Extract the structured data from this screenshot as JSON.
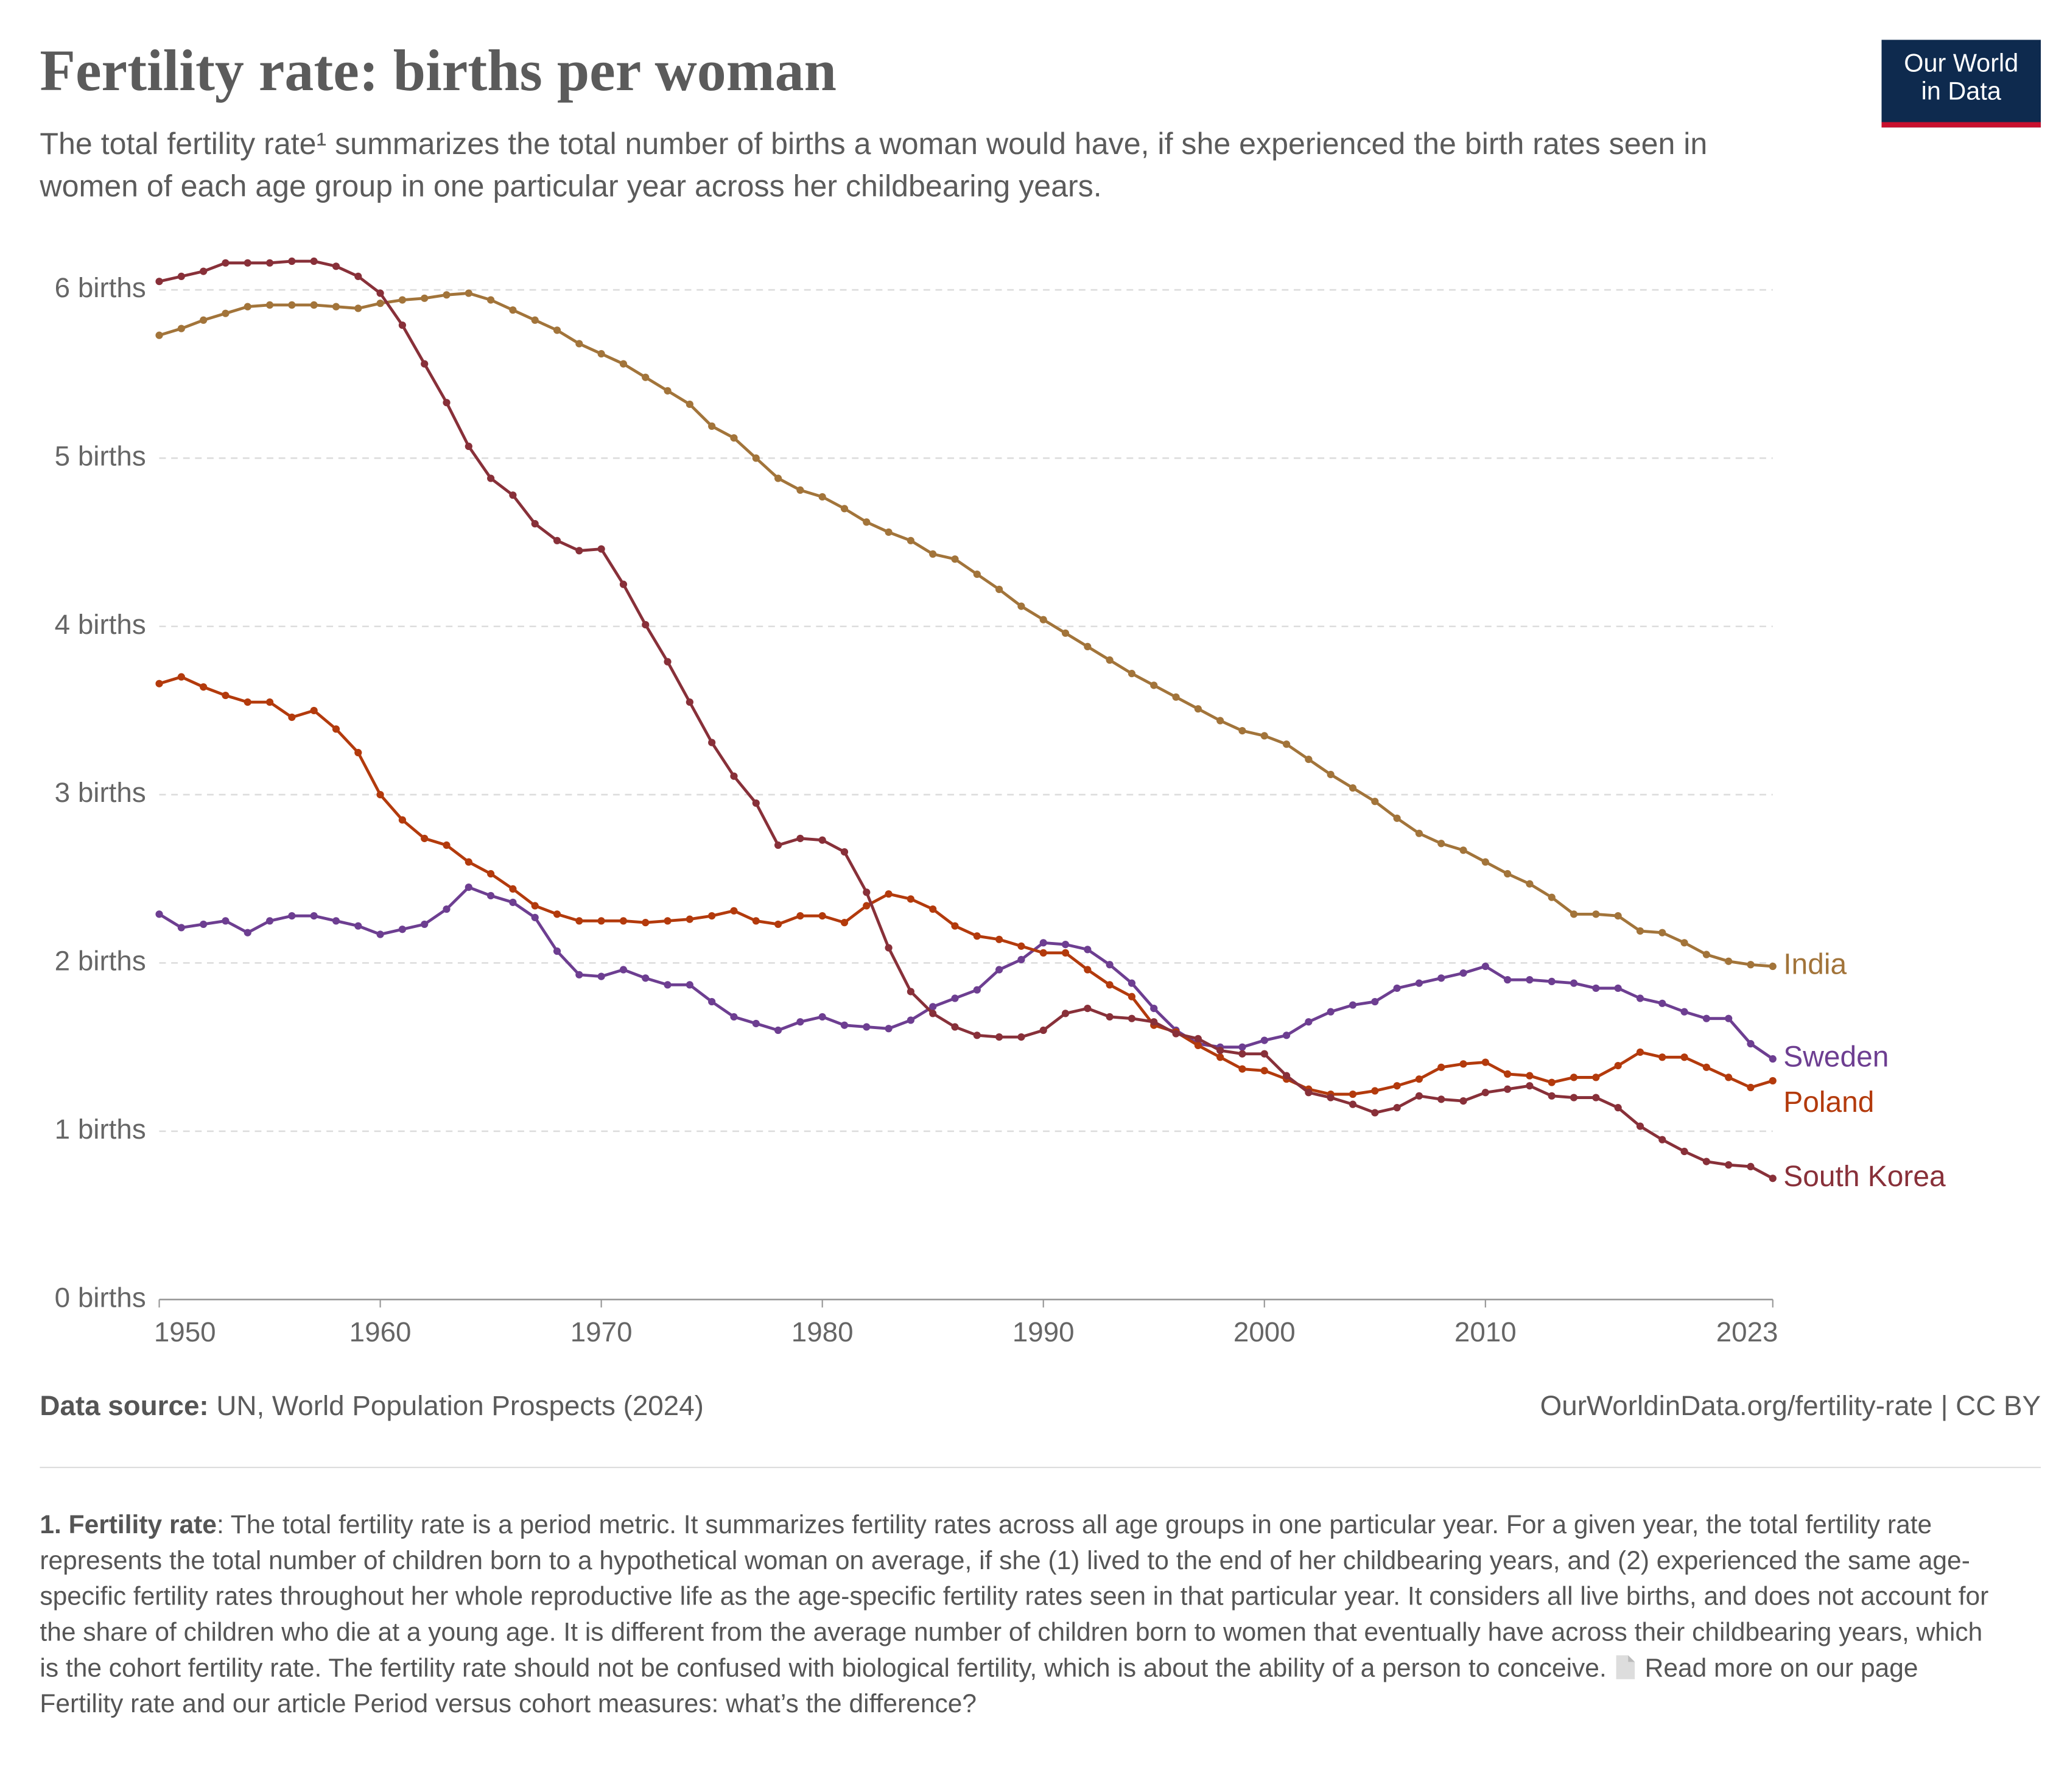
{
  "chart_data": {
    "type": "line",
    "title": "Fertility rate: births per woman",
    "subtitle": "The total fertility rate¹ summarizes the total number of births a woman would have, if she experienced the birth rates seen in women of each age group in one particular year across her childbearing years.",
    "x": [
      1950,
      1951,
      1952,
      1953,
      1954,
      1955,
      1956,
      1957,
      1958,
      1959,
      1960,
      1961,
      1962,
      1963,
      1964,
      1965,
      1966,
      1967,
      1968,
      1969,
      1970,
      1971,
      1972,
      1973,
      1974,
      1975,
      1976,
      1977,
      1978,
      1979,
      1980,
      1981,
      1982,
      1983,
      1984,
      1985,
      1986,
      1987,
      1988,
      1989,
      1990,
      1991,
      1992,
      1993,
      1994,
      1995,
      1996,
      1997,
      1998,
      1999,
      2000,
      2001,
      2002,
      2003,
      2004,
      2005,
      2006,
      2007,
      2008,
      2009,
      2010,
      2011,
      2012,
      2013,
      2014,
      2015,
      2016,
      2017,
      2018,
      2019,
      2020,
      2021,
      2022,
      2023
    ],
    "xlim": [
      1950,
      2023
    ],
    "xticks": [
      1950,
      1960,
      1970,
      1980,
      1990,
      2000,
      2010,
      2023
    ],
    "ylim": [
      0,
      6.2
    ],
    "yticks": [
      {
        "value": 0,
        "label": "0 births"
      },
      {
        "value": 1,
        "label": "1 births"
      },
      {
        "value": 2,
        "label": "2 births"
      },
      {
        "value": 3,
        "label": "3 births"
      },
      {
        "value": 4,
        "label": "4 births"
      },
      {
        "value": 5,
        "label": "5 births"
      },
      {
        "value": 6,
        "label": "6 births"
      }
    ],
    "grid": true,
    "series": [
      {
        "name": "India",
        "color": "#a2743a",
        "values": [
          5.73,
          5.77,
          5.82,
          5.86,
          5.9,
          5.91,
          5.91,
          5.91,
          5.9,
          5.89,
          5.92,
          5.94,
          5.95,
          5.97,
          5.98,
          5.94,
          5.88,
          5.82,
          5.76,
          5.68,
          5.62,
          5.56,
          5.48,
          5.4,
          5.32,
          5.19,
          5.12,
          5.0,
          4.88,
          4.81,
          4.77,
          4.7,
          4.62,
          4.56,
          4.51,
          4.43,
          4.4,
          4.31,
          4.22,
          4.12,
          4.04,
          3.96,
          3.88,
          3.8,
          3.72,
          3.65,
          3.58,
          3.51,
          3.44,
          3.38,
          3.35,
          3.3,
          3.21,
          3.12,
          3.04,
          2.96,
          2.86,
          2.77,
          2.71,
          2.67,
          2.6,
          2.53,
          2.47,
          2.39,
          2.29,
          2.29,
          2.28,
          2.19,
          2.18,
          2.12,
          2.05,
          2.01,
          1.99,
          1.98
        ]
      },
      {
        "name": "Sweden",
        "color": "#6d3e91",
        "values": [
          2.29,
          2.21,
          2.23,
          2.25,
          2.18,
          2.25,
          2.28,
          2.28,
          2.25,
          2.22,
          2.17,
          2.2,
          2.23,
          2.32,
          2.45,
          2.4,
          2.36,
          2.27,
          2.07,
          1.93,
          1.92,
          1.96,
          1.91,
          1.87,
          1.87,
          1.77,
          1.68,
          1.64,
          1.6,
          1.65,
          1.68,
          1.63,
          1.62,
          1.61,
          1.66,
          1.74,
          1.79,
          1.84,
          1.96,
          2.02,
          2.12,
          2.11,
          2.08,
          1.99,
          1.88,
          1.73,
          1.6,
          1.52,
          1.5,
          1.5,
          1.54,
          1.57,
          1.65,
          1.71,
          1.75,
          1.77,
          1.85,
          1.88,
          1.91,
          1.94,
          1.98,
          1.9,
          1.9,
          1.89,
          1.88,
          1.85,
          1.85,
          1.79,
          1.76,
          1.71,
          1.67,
          1.67,
          1.52,
          1.43
        ]
      },
      {
        "name": "Poland",
        "color": "#b33a0c",
        "values": [
          3.66,
          3.7,
          3.64,
          3.59,
          3.55,
          3.55,
          3.46,
          3.5,
          3.39,
          3.25,
          3.0,
          2.85,
          2.74,
          2.7,
          2.6,
          2.53,
          2.44,
          2.34,
          2.29,
          2.25,
          2.25,
          2.25,
          2.24,
          2.25,
          2.26,
          2.28,
          2.31,
          2.25,
          2.23,
          2.28,
          2.28,
          2.24,
          2.34,
          2.41,
          2.38,
          2.32,
          2.22,
          2.16,
          2.14,
          2.1,
          2.06,
          2.06,
          1.96,
          1.87,
          1.8,
          1.63,
          1.59,
          1.51,
          1.44,
          1.37,
          1.36,
          1.31,
          1.25,
          1.22,
          1.22,
          1.24,
          1.27,
          1.31,
          1.38,
          1.4,
          1.41,
          1.34,
          1.33,
          1.29,
          1.32,
          1.32,
          1.39,
          1.47,
          1.44,
          1.44,
          1.38,
          1.32,
          1.26,
          1.3
        ]
      },
      {
        "name": "South Korea",
        "color": "#883039",
        "values": [
          6.05,
          6.08,
          6.11,
          6.16,
          6.16,
          6.16,
          6.17,
          6.17,
          6.14,
          6.08,
          5.98,
          5.79,
          5.56,
          5.33,
          5.07,
          4.88,
          4.78,
          4.61,
          4.51,
          4.45,
          4.46,
          4.25,
          4.01,
          3.79,
          3.55,
          3.31,
          3.11,
          2.95,
          2.7,
          2.74,
          2.73,
          2.66,
          2.42,
          2.09,
          1.83,
          1.7,
          1.62,
          1.57,
          1.56,
          1.56,
          1.6,
          1.7,
          1.73,
          1.68,
          1.67,
          1.65,
          1.58,
          1.55,
          1.48,
          1.46,
          1.46,
          1.33,
          1.23,
          1.2,
          1.16,
          1.11,
          1.14,
          1.21,
          1.19,
          1.18,
          1.23,
          1.25,
          1.27,
          1.21,
          1.2,
          1.2,
          1.14,
          1.03,
          0.95,
          0.88,
          0.82,
          0.8,
          0.79,
          0.72
        ]
      }
    ]
  },
  "logo": [
    "Our World",
    "in Data"
  ],
  "footer": {
    "source_label": "Data source:",
    "source": "UN, World Population Prospects (2024)",
    "url": "OurWorldinData.org/fertility-rate | CC BY"
  },
  "footnote": {
    "term": "1. Fertility rate",
    "text": ": The total fertility rate is a period metric. It summarizes fertility rates across all age groups in one particular year. For a given year, the total fertility rate represents the total number of children born to a hypothetical woman on average, if she (1) lived to the end of her childbearing years, and (2) experienced the same age-specific fertility rates throughout her whole reproductive life as the age-specific fertility rates seen in that particular year. It considers all live births, and does not account for the share of children who die at a young age. It is different from the average number of children born to women that eventually have across their childbearing years, which is the cohort fertility rate. The fertility rate should not be confused with biological fertility, which is about the ability of a person to conceive.",
    "more": "Read more on our page Fertility rate and our article Period versus cohort measures: what’s the difference?"
  }
}
